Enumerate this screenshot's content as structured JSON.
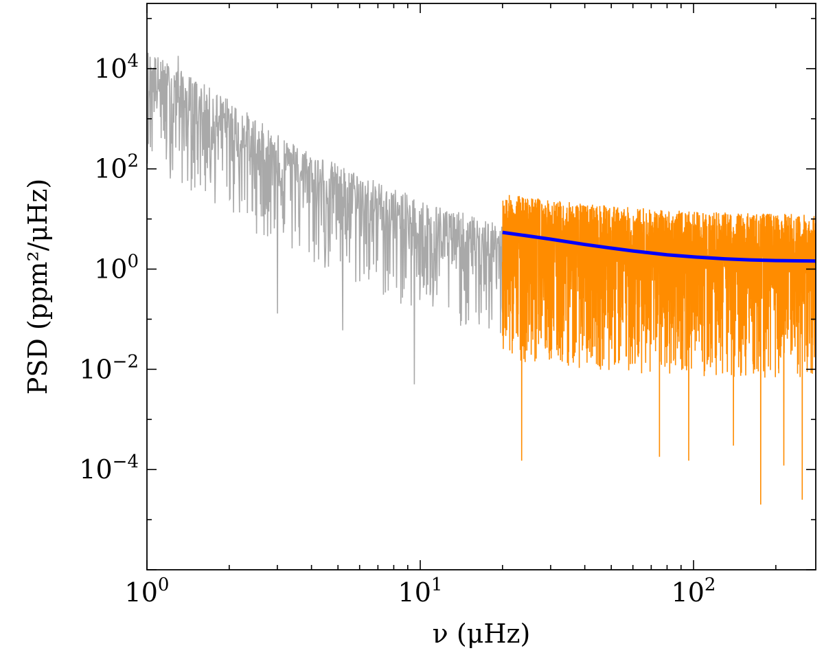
{
  "chart_data": {
    "type": "line",
    "xscale": "log",
    "yscale": "log",
    "xlim": [
      1,
      280
    ],
    "ylim": [
      1e-06,
      200000
    ],
    "xlabel": "ν (μHz)",
    "ylabel": "PSD (ppm²/μHz)",
    "x_ticks": [
      {
        "value": 1,
        "base": "10",
        "exp": "0"
      },
      {
        "value": 10,
        "base": "10",
        "exp": "1"
      },
      {
        "value": 100,
        "base": "10",
        "exp": "2"
      }
    ],
    "y_ticks": [
      {
        "value": 10000,
        "base": "10",
        "exp": "4"
      },
      {
        "value": 100,
        "base": "10",
        "exp": "2"
      },
      {
        "value": 1,
        "base": "10",
        "exp": "0"
      },
      {
        "value": 0.01,
        "base": "10",
        "exp": "−2"
      },
      {
        "value": 0.0001,
        "base": "10",
        "exp": "−4"
      }
    ],
    "grid": false,
    "colors": {
      "low_freq": "#a9a9a9",
      "high_freq": "#ff8c00",
      "fit": "#0000ff"
    },
    "series": [
      {
        "role": "low_freq",
        "x_range": [
          1,
          20
        ],
        "trend": {
          "x": [
            1,
            1.3,
            2,
            3,
            5,
            10,
            20
          ],
          "y": [
            5000,
            2000,
            500,
            100,
            25,
            5,
            1.5
          ]
        },
        "spread_dex": [
          -1.6,
          0.7
        ],
        "spikes": [
          {
            "x": 1.3,
            "y": 18000
          },
          {
            "x": 3.0,
            "y": 0.13
          },
          {
            "x": 9.5,
            "y": 0.005
          },
          {
            "x": 5.2,
            "y": 0.06
          }
        ]
      },
      {
        "role": "high_freq",
        "x_range": [
          20,
          280
        ],
        "trend": {
          "x": [
            20,
            40,
            100,
            280
          ],
          "y": [
            2.5,
            1.6,
            1.1,
            1.0
          ]
        },
        "spread_dex": [
          -2.2,
          1.1
        ],
        "spikes": [
          {
            "x": 23.5,
            "y": 0.00015
          },
          {
            "x": 75,
            "y": 0.00018
          },
          {
            "x": 96,
            "y": 0.00015
          },
          {
            "x": 176,
            "y": 2e-05
          },
          {
            "x": 250,
            "y": 2.5e-05
          },
          {
            "x": 214,
            "y": 0.00012
          },
          {
            "x": 140,
            "y": 0.0003
          }
        ]
      }
    ],
    "fit_curve": {
      "x": [
        20,
        25,
        30,
        40,
        50,
        60,
        80,
        100,
        130,
        160,
        200,
        240,
        280
      ],
      "y": [
        5.4,
        4.55,
        3.95,
        3.1,
        2.62,
        2.3,
        1.93,
        1.75,
        1.6,
        1.53,
        1.48,
        1.46,
        1.45
      ]
    }
  }
}
